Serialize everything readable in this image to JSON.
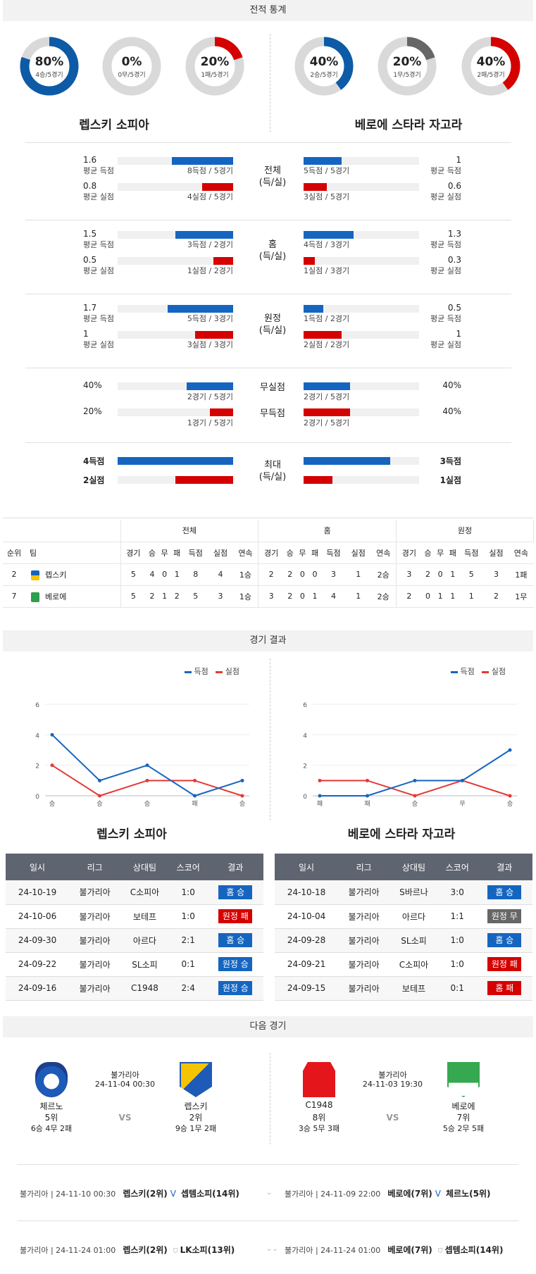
{
  "sections": {
    "stats": "전적 통계",
    "results": "경기 결과",
    "next": "다음 경기"
  },
  "donuts": [
    {
      "pct": "80%",
      "sub": "4승/5경기",
      "value": 0.8,
      "color": "#0d5aa7"
    },
    {
      "pct": "0%",
      "sub": "0무/5경기",
      "value": 0,
      "color": "#666666"
    },
    {
      "pct": "20%",
      "sub": "1패/5경기",
      "value": 0.2,
      "color": "#d50000"
    },
    {
      "pct": "40%",
      "sub": "2승/5경기",
      "value": 0.4,
      "color": "#0d5aa7"
    },
    {
      "pct": "20%",
      "sub": "1무/5경기",
      "value": 0.2,
      "color": "#666666"
    },
    {
      "pct": "40%",
      "sub": "2패/5경기",
      "value": 0.4,
      "color": "#d50000"
    }
  ],
  "teams": {
    "home": "렙스키 소피아",
    "away": "베로에 스타라 자고라"
  },
  "stat_groups": [
    {
      "label1": "전체",
      "label2": "(득/실)",
      "rows": [
        {
          "lv": "1.6",
          "lt": "평균 득점",
          "lbar": "8득점 / 5경기",
          "lfrac": 0.53,
          "rv": "1",
          "rt": "평균 득점",
          "rbar": "5득점 / 5경기",
          "rfrac": 0.33,
          "color": "blue"
        },
        {
          "lv": "0.8",
          "lt": "평균 실점",
          "lbar": "4실점 / 5경기",
          "lfrac": 0.27,
          "rv": "0.6",
          "rt": "평균 실점",
          "rbar": "3실점 / 5경기",
          "rfrac": 0.2,
          "color": "red"
        }
      ]
    },
    {
      "label1": "홈",
      "label2": "(득/실)",
      "rows": [
        {
          "lv": "1.5",
          "lt": "평균 득점",
          "lbar": "3득점 / 2경기",
          "lfrac": 0.5,
          "rv": "1.3",
          "rt": "평균 득점",
          "rbar": "4득점 / 3경기",
          "rfrac": 0.43,
          "color": "blue"
        },
        {
          "lv": "0.5",
          "lt": "평균 실점",
          "lbar": "1실점 / 2경기",
          "lfrac": 0.17,
          "rv": "0.3",
          "rt": "평균 실점",
          "rbar": "1실점 / 3경기",
          "rfrac": 0.1,
          "color": "red"
        }
      ]
    },
    {
      "label1": "원정",
      "label2": "(득/실)",
      "rows": [
        {
          "lv": "1.7",
          "lt": "평균 득점",
          "lbar": "5득점 / 3경기",
          "lfrac": 0.57,
          "rv": "0.5",
          "rt": "평균 득점",
          "rbar": "1득점 / 2경기",
          "rfrac": 0.17,
          "color": "blue"
        },
        {
          "lv": "1",
          "lt": "평균 실점",
          "lbar": "3실점 / 3경기",
          "lfrac": 0.33,
          "rv": "1",
          "rt": "평균 실점",
          "rbar": "2실점 / 2경기",
          "rfrac": 0.33,
          "color": "red"
        }
      ]
    }
  ],
  "clean": [
    {
      "label": "무실점",
      "lv": "40%",
      "lbar": "2경기 / 5경기",
      "lfrac": 0.4,
      "rv": "40%",
      "rbar": "2경기 / 5경기",
      "rfrac": 0.4,
      "color": "blue"
    },
    {
      "label": "무득점",
      "lv": "20%",
      "lbar": "1경기 / 5경기",
      "lfrac": 0.2,
      "rv": "40%",
      "rbar": "2경기 / 5경기",
      "rfrac": 0.4,
      "color": "red"
    }
  ],
  "max": {
    "label1": "최대",
    "label2": "(득/실)",
    "rows": [
      {
        "lv": "4득점",
        "lfrac": 1.0,
        "rv": "3득점",
        "rfrac": 0.75,
        "color": "blue"
      },
      {
        "lv": "2실점",
        "lfrac": 0.5,
        "rv": "1실점",
        "rfrac": 0.25,
        "color": "red"
      }
    ]
  },
  "standings": {
    "groups": [
      "전체",
      "홈",
      "원정"
    ],
    "headers": [
      "순위",
      "팀",
      "경기",
      "승",
      "무",
      "패",
      "득점",
      "실점",
      "연속",
      "경기",
      "승",
      "무",
      "패",
      "득점",
      "실점",
      "연속",
      "경기",
      "승",
      "무",
      "패",
      "득점",
      "실점",
      "연속"
    ],
    "rows": [
      {
        "rank": "2",
        "team": "렙스키",
        "cells": [
          "5",
          "4",
          "0",
          "1",
          "8",
          "4",
          "1승",
          "2",
          "2",
          "0",
          "0",
          "3",
          "1",
          "2승",
          "3",
          "2",
          "0",
          "1",
          "5",
          "3",
          "1패"
        ]
      },
      {
        "rank": "7",
        "team": "베로에",
        "cells": [
          "5",
          "2",
          "1",
          "2",
          "5",
          "3",
          "1승",
          "3",
          "2",
          "0",
          "1",
          "4",
          "1",
          "2승",
          "2",
          "0",
          "1",
          "1",
          "1",
          "2",
          "1무"
        ]
      }
    ]
  },
  "legend": {
    "scored": "득점",
    "conceded": "실점"
  },
  "charts": [
    {
      "team": "렙스키 소피아",
      "x": [
        "승",
        "승",
        "승",
        "패",
        "승"
      ],
      "scored": [
        4,
        1,
        2,
        0,
        1
      ],
      "conceded": [
        2,
        0,
        1,
        1,
        0
      ],
      "ymax": 6,
      "yticks": [
        "0",
        "2",
        "4",
        "6"
      ]
    },
    {
      "team": "베로에 스타라 자고라",
      "x": [
        "패",
        "패",
        "승",
        "무",
        "승"
      ],
      "scored": [
        0,
        0,
        1,
        1,
        3
      ],
      "conceded": [
        1,
        1,
        0,
        1,
        0
      ],
      "ymax": 6,
      "yticks": [
        "0",
        "2",
        "4",
        "6"
      ]
    }
  ],
  "result_headers": [
    "일시",
    "리그",
    "상대팀",
    "스코어",
    "결과"
  ],
  "results_home": [
    {
      "date": "24-10-19",
      "league": "불가리아",
      "opp": "C소피아",
      "score": "1:0",
      "res": "홈 승",
      "color": "#1565c0"
    },
    {
      "date": "24-10-06",
      "league": "불가리아",
      "opp": "보테프",
      "score": "1:0",
      "res": "원정 패",
      "color": "#d50000"
    },
    {
      "date": "24-09-30",
      "league": "불가리아",
      "opp": "아르다",
      "score": "2:1",
      "res": "홈 승",
      "color": "#1565c0"
    },
    {
      "date": "24-09-22",
      "league": "불가리아",
      "opp": "SL소피",
      "score": "0:1",
      "res": "원정 승",
      "color": "#1565c0"
    },
    {
      "date": "24-09-16",
      "league": "불가리아",
      "opp": "C1948",
      "score": "2:4",
      "res": "원정 승",
      "color": "#1565c0"
    }
  ],
  "results_away": [
    {
      "date": "24-10-18",
      "league": "불가리아",
      "opp": "S바르나",
      "score": "3:0",
      "res": "홈 승",
      "color": "#1565c0"
    },
    {
      "date": "24-10-04",
      "league": "불가리아",
      "opp": "아르다",
      "score": "1:1",
      "res": "원정 무",
      "color": "#666666"
    },
    {
      "date": "24-09-28",
      "league": "불가리아",
      "opp": "SL소피",
      "score": "1:0",
      "res": "홈 승",
      "color": "#1565c0"
    },
    {
      "date": "24-09-21",
      "league": "불가리아",
      "opp": "C소피아",
      "score": "1:0",
      "res": "원정 패",
      "color": "#d50000"
    },
    {
      "date": "24-09-15",
      "league": "불가리아",
      "opp": "보테프",
      "score": "0:1",
      "res": "홈 패",
      "color": "#d50000"
    }
  ],
  "next_matches": [
    {
      "league": "불가리아",
      "datetime": "24-11-04 00:30",
      "vs": "VS",
      "t1": {
        "name": "체르노",
        "rank": "5위",
        "record": "6승 4무 2패"
      },
      "t2": {
        "name": "렙스키",
        "rank": "2위",
        "record": "9승 1무 2패"
      }
    },
    {
      "league": "불가리아",
      "datetime": "24-11-03 19:30",
      "vs": "VS",
      "t1": {
        "name": "C1948",
        "rank": "8위",
        "record": "3승 5무 3패"
      },
      "t2": {
        "name": "베로에",
        "rank": "7위",
        "record": "5승 2무 5패"
      }
    }
  ],
  "fixtures": [
    {
      "left": {
        "info": "불가리아 | 24-11-10 00:30",
        "team": "렙스키(2위)",
        "vs": "V",
        "opp": "셉템소피(14위)"
      },
      "right": {
        "info": "불가리아 | 24-11-09 22:00",
        "team": "베로에(7위)",
        "vs": "V",
        "opp": "체르노(5위)"
      }
    },
    {
      "left": {
        "info": "불가리아 | 24-11-24 01:00",
        "team": "렙스키(2위)",
        "vs": "",
        "opp": "LK소피(13위)"
      },
      "right": {
        "info": "불가리아 | 24-11-24 01:00",
        "team": "베로에(7위)",
        "vs": "",
        "opp": "셉템소피(14위)"
      }
    }
  ]
}
